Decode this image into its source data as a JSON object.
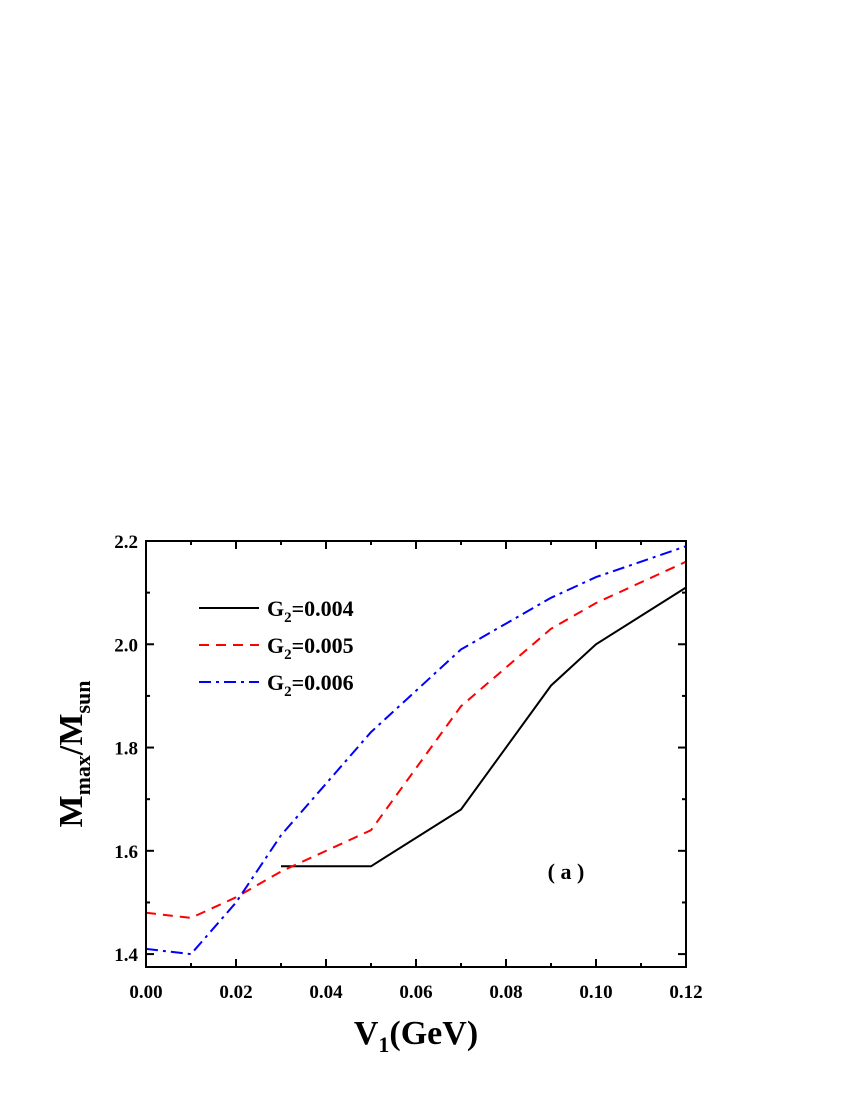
{
  "chart_data": {
    "type": "line",
    "xlabel": {
      "main": "V",
      "sub": "1",
      "rest": "(GeV)"
    },
    "ylabel": {
      "main1": "M",
      "sub1": "max",
      "mid": "/M",
      "sub2": "sun"
    },
    "xlim": [
      0.0,
      0.12
    ],
    "ylim": [
      1.375,
      2.2
    ],
    "x_ticks": [
      0.0,
      0.02,
      0.04,
      0.06,
      0.08,
      0.1,
      0.12
    ],
    "x_tick_labels": [
      "0.00",
      "0.02",
      "0.04",
      "0.06",
      "0.08",
      "0.10",
      "0.12"
    ],
    "y_ticks": [
      1.4,
      1.6,
      1.8,
      2.0,
      2.2
    ],
    "y_tick_labels": [
      "1.4",
      "1.6",
      "1.8",
      "2.0",
      "2.2"
    ],
    "grid": false,
    "legend_position": "top-left",
    "annotation": "( a )",
    "series": [
      {
        "legend_main": "G",
        "legend_sub": "2",
        "legend_rest": "=0.004",
        "color": "#000000",
        "dash": "solid",
        "x": [
          0.03,
          0.05,
          0.07,
          0.09,
          0.1,
          0.12
        ],
        "y": [
          1.57,
          1.57,
          1.68,
          1.92,
          2.0,
          2.11
        ]
      },
      {
        "legend_main": "G",
        "legend_sub": "2",
        "legend_rest": "=0.005",
        "color": "#ff0000",
        "dash": "dashed",
        "x": [
          0.0,
          0.01,
          0.02,
          0.03,
          0.05,
          0.07,
          0.09,
          0.1,
          0.12
        ],
        "y": [
          1.48,
          1.47,
          1.51,
          1.56,
          1.64,
          1.88,
          2.03,
          2.08,
          2.16
        ]
      },
      {
        "legend_main": "G",
        "legend_sub": "2",
        "legend_rest": "=0.006",
        "color": "#0000ff",
        "dash": "dashdot",
        "x": [
          0.0,
          0.01,
          0.02,
          0.03,
          0.05,
          0.07,
          0.08,
          0.09,
          0.1,
          0.12
        ],
        "y": [
          1.41,
          1.4,
          1.5,
          1.63,
          1.83,
          1.99,
          2.04,
          2.09,
          2.13,
          2.19
        ]
      }
    ]
  }
}
